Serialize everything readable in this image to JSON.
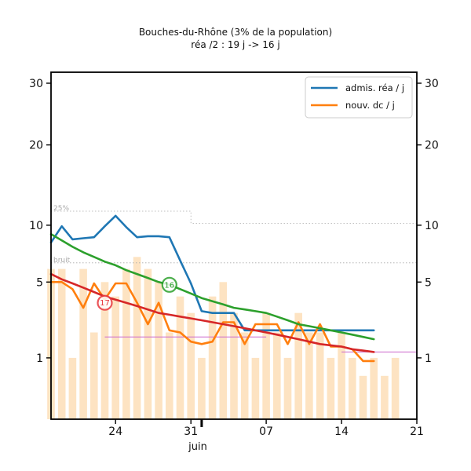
{
  "chart_data": {
    "type": "line",
    "title": "Bouches-du-Rhône (3% de la population)",
    "subtitle": "réa /2 : 19 j -> 16 j",
    "xlabel": "juin",
    "ylabel": "",
    "x_ticks": [
      "24",
      "31",
      "07",
      "14",
      "21"
    ],
    "x_tick_dates": [
      "2020-05-24",
      "2020-05-31",
      "2020-06-07",
      "2020-06-14",
      "2020-06-21"
    ],
    "y_ticks": [
      1,
      5,
      10,
      20,
      30
    ],
    "y_scale": "sqrt",
    "xlim": [
      "2020-05-18",
      "2020-06-21"
    ],
    "ylim": [
      0,
      32
    ],
    "grid": false,
    "legend_position": "top-right",
    "dates": [
      "2020-05-18",
      "2020-05-19",
      "2020-05-20",
      "2020-05-21",
      "2020-05-22",
      "2020-05-23",
      "2020-05-24",
      "2020-05-25",
      "2020-05-26",
      "2020-05-27",
      "2020-05-28",
      "2020-05-29",
      "2020-05-30",
      "2020-05-31",
      "2020-06-01",
      "2020-06-02",
      "2020-06-03",
      "2020-06-04",
      "2020-06-05",
      "2020-06-06",
      "2020-06-07",
      "2020-06-08",
      "2020-06-09",
      "2020-06-10",
      "2020-06-11",
      "2020-06-12",
      "2020-06-13",
      "2020-06-14",
      "2020-06-15",
      "2020-06-16",
      "2020-06-17"
    ],
    "series": [
      {
        "name": "admis. réa / j",
        "color": "#1f77b4",
        "in_legend": true,
        "values": [
          8.3,
          9.9,
          8.6,
          8.7,
          8.8,
          9.9,
          11.0,
          9.8,
          8.8,
          8.9,
          8.9,
          8.8,
          6.7,
          4.9,
          3.1,
          3.0,
          3.0,
          3.0,
          2.1,
          2.1,
          2.1,
          2.1,
          2.1,
          2.1,
          2.1,
          2.1,
          2.1,
          2.1,
          2.1,
          2.1,
          2.1
        ]
      },
      {
        "name": "nouv. dc / j",
        "color": "#ff7f0e",
        "in_legend": true,
        "values": [
          5.0,
          5.0,
          4.5,
          3.3,
          4.9,
          3.8,
          4.9,
          4.9,
          3.6,
          2.4,
          3.6,
          2.1,
          2.0,
          1.6,
          1.5,
          1.6,
          2.5,
          2.5,
          1.5,
          2.4,
          2.4,
          2.4,
          1.5,
          2.5,
          1.5,
          2.4,
          1.4,
          1.4,
          1.3,
          0.9,
          0.9
        ]
      },
      {
        "name": "",
        "color": "#2ca02c",
        "in_legend": false,
        "values": [
          9.1,
          8.5,
          7.9,
          7.4,
          7.0,
          6.6,
          6.3,
          5.9,
          5.6,
          5.3,
          5.0,
          4.8,
          4.5,
          4.2,
          3.9,
          3.7,
          3.5,
          3.3,
          3.2,
          3.1,
          3.0,
          2.8,
          2.6,
          2.4,
          2.3,
          2.2,
          2.1,
          2.0,
          1.9,
          1.8,
          1.7
        ]
      },
      {
        "name": "",
        "color": "#d62728",
        "in_legend": false,
        "values": [
          5.6,
          5.2,
          4.9,
          4.6,
          4.3,
          4.0,
          3.8,
          3.6,
          3.4,
          3.2,
          3.0,
          2.9,
          2.8,
          2.7,
          2.6,
          2.5,
          2.4,
          2.3,
          2.2,
          2.1,
          2.0,
          1.9,
          1.8,
          1.7,
          1.6,
          1.5,
          1.45,
          1.4,
          1.3,
          1.25,
          1.2
        ]
      }
    ],
    "bars": {
      "color": "#fde3c2",
      "dates": [
        "2020-05-18",
        "2020-05-19",
        "2020-05-20",
        "2020-05-21",
        "2020-05-22",
        "2020-05-23",
        "2020-05-24",
        "2020-05-25",
        "2020-05-26",
        "2020-05-27",
        "2020-05-28",
        "2020-05-29",
        "2020-05-30",
        "2020-05-31",
        "2020-06-01",
        "2020-06-02",
        "2020-06-03",
        "2020-06-04",
        "2020-06-05",
        "2020-06-06",
        "2020-06-07",
        "2020-06-08",
        "2020-06-09",
        "2020-06-10",
        "2020-06-11",
        "2020-06-12",
        "2020-06-13",
        "2020-06-14",
        "2020-06-15",
        "2020-06-16",
        "2020-06-17",
        "2020-06-18",
        "2020-06-19"
      ],
      "values": [
        6,
        6,
        1,
        6,
        2,
        5,
        4,
        6,
        7,
        6,
        5,
        2,
        4,
        3,
        1,
        4,
        5,
        3,
        2,
        1,
        3,
        2,
        1,
        3,
        2,
        2,
        1,
        2,
        1,
        0.5,
        1,
        0.5,
        1
      ]
    },
    "reference_lines": [
      {
        "label": "25%",
        "segments": [
          {
            "x": [
              "2020-05-18",
              "2020-05-31"
            ],
            "y": 11.5
          },
          {
            "x": [
              "2020-05-31",
              "2020-06-21"
            ],
            "y": 10.2
          }
        ]
      },
      {
        "label": "bruit",
        "segments": [
          {
            "x": [
              "2020-05-18",
              "2020-06-21"
            ],
            "y": 6.5
          }
        ]
      }
    ],
    "annotations": [
      {
        "text": "17",
        "series": "nouv. dc / j",
        "date": "2020-05-23",
        "y": 3.6,
        "color": "#e8383d"
      },
      {
        "text": "16",
        "series": "admis. réa / j",
        "date": "2020-05-29",
        "y": 4.8,
        "color": "#2ca02c"
      }
    ],
    "step_segments": [
      {
        "x": [
          "2020-05-23",
          "2020-06-07"
        ],
        "y": 1.8
      },
      {
        "x": [
          "2020-06-05",
          "2020-06-13"
        ],
        "y": 2.1
      },
      {
        "x": [
          "2020-06-14",
          "2020-06-21"
        ],
        "y": 1.2
      }
    ]
  }
}
